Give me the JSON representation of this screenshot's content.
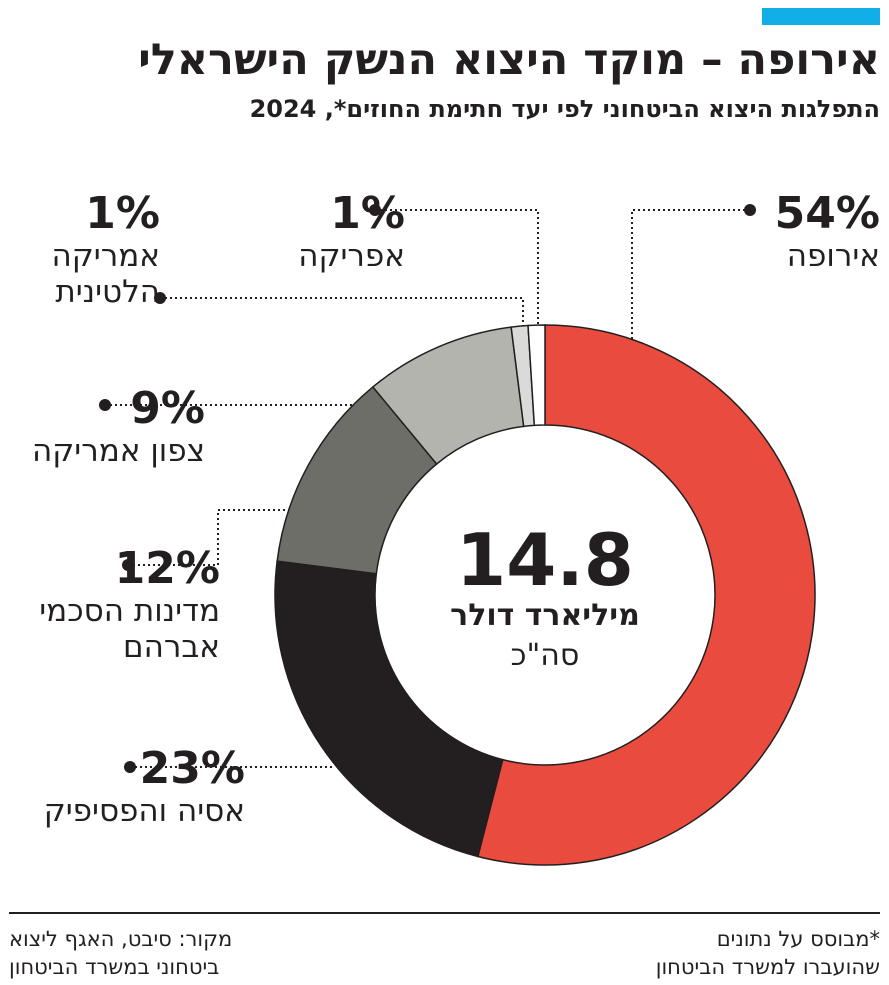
{
  "chart_data": {
    "type": "donut",
    "title": "אירופה – מוקד היצוא הנשק הישראלי",
    "subtitle": "התפלגות היצוא הביטחוני לפי יעד חתימת החוזים*, 2024",
    "categories": [
      "אירופה",
      "אסיה והפסיפיק",
      "מדינות הסכמי\nאברהם",
      "צפון אמריקה",
      "אמריקה\nהלטינית",
      "אפריקה"
    ],
    "values": [
      54,
      23,
      12,
      9,
      1,
      1
    ],
    "value_labels": [
      "54%",
      "23%",
      "12%",
      "9%",
      "1%",
      "1%"
    ],
    "colors": [
      "#e94c3f",
      "#231f20",
      "#6e6e69",
      "#b4b4af",
      "#dadad8",
      "#ffffff"
    ],
    "total": 14.8,
    "total_unit": "מיליארד דולר",
    "total_label": "סה\"כ",
    "source": "מקור: סיבט, האגף ליצוא\nביטחוני במשרד הביטחון",
    "footnote": "*מבוסס על נתונים\nשהועברו למשרד הביטחון"
  }
}
